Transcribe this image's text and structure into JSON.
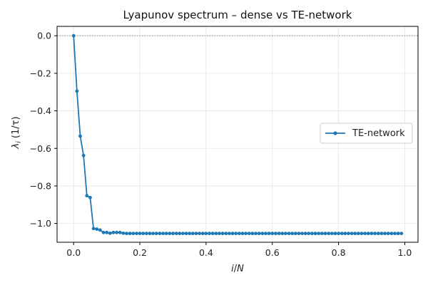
{
  "colors": {
    "series": "#1f77b4",
    "grid": "#e5e5e5",
    "zero_line": "#888888",
    "axis": "#000000"
  },
  "chart_data": {
    "type": "line",
    "title": "Lyapunov spectrum – dense vs TE-network",
    "xlabel": "i/N",
    "ylabel": "λ_i (1/τ)",
    "xlim": [
      -0.05,
      1.04
    ],
    "ylim": [
      -1.1,
      0.05
    ],
    "xticks": [
      0.0,
      0.2,
      0.4,
      0.6,
      0.8,
      1.0
    ],
    "xtick_labels": [
      "0.0",
      "0.2",
      "0.4",
      "0.6",
      "0.8",
      "1.0"
    ],
    "yticks": [
      0.0,
      -0.2,
      -0.4,
      -0.6,
      -0.8,
      -1.0
    ],
    "ytick_labels": [
      "0.0",
      "−0.2",
      "−0.4",
      "−0.6",
      "−0.8",
      "−1.0"
    ],
    "grid": true,
    "zero_reference_line": true,
    "legend": {
      "position": "center-right",
      "entries": [
        "TE-network"
      ]
    },
    "series": [
      {
        "name": "TE-network",
        "marker": "circle",
        "x": [
          0.0,
          0.01,
          0.02,
          0.03,
          0.04,
          0.05,
          0.06,
          0.07,
          0.08,
          0.09,
          0.1,
          0.11,
          0.12,
          0.13,
          0.14,
          0.15,
          0.16,
          0.17,
          0.18,
          0.19,
          0.2,
          0.21,
          0.22,
          0.23,
          0.24,
          0.25,
          0.26,
          0.27,
          0.28,
          0.29,
          0.3,
          0.31,
          0.32,
          0.33,
          0.34,
          0.35,
          0.36,
          0.37,
          0.38,
          0.39,
          0.4,
          0.41,
          0.42,
          0.43,
          0.44,
          0.45,
          0.46,
          0.47,
          0.48,
          0.49,
          0.5,
          0.51,
          0.52,
          0.53,
          0.54,
          0.55,
          0.56,
          0.57,
          0.58,
          0.59,
          0.6,
          0.61,
          0.62,
          0.63,
          0.64,
          0.65,
          0.66,
          0.67,
          0.68,
          0.69,
          0.7,
          0.71,
          0.72,
          0.73,
          0.74,
          0.75,
          0.76,
          0.77,
          0.78,
          0.79,
          0.8,
          0.81,
          0.82,
          0.83,
          0.84,
          0.85,
          0.86,
          0.87,
          0.88,
          0.89,
          0.9,
          0.91,
          0.92,
          0.93,
          0.94,
          0.95,
          0.96,
          0.97,
          0.98,
          0.99
        ],
        "y": [
          0.0,
          -0.295,
          -0.535,
          -0.638,
          -0.852,
          -0.862,
          -1.027,
          -1.03,
          -1.035,
          -1.048,
          -1.048,
          -1.052,
          -1.048,
          -1.048,
          -1.048,
          -1.052,
          -1.053,
          -1.053,
          -1.053,
          -1.053,
          -1.053,
          -1.053,
          -1.053,
          -1.053,
          -1.053,
          -1.053,
          -1.053,
          -1.053,
          -1.053,
          -1.053,
          -1.053,
          -1.053,
          -1.053,
          -1.053,
          -1.053,
          -1.053,
          -1.053,
          -1.053,
          -1.053,
          -1.053,
          -1.053,
          -1.053,
          -1.053,
          -1.053,
          -1.053,
          -1.053,
          -1.053,
          -1.053,
          -1.053,
          -1.053,
          -1.053,
          -1.053,
          -1.053,
          -1.053,
          -1.053,
          -1.053,
          -1.053,
          -1.053,
          -1.053,
          -1.053,
          -1.053,
          -1.053,
          -1.053,
          -1.053,
          -1.053,
          -1.053,
          -1.053,
          -1.053,
          -1.053,
          -1.053,
          -1.053,
          -1.053,
          -1.053,
          -1.053,
          -1.053,
          -1.053,
          -1.053,
          -1.053,
          -1.053,
          -1.053,
          -1.053,
          -1.053,
          -1.053,
          -1.053,
          -1.053,
          -1.053,
          -1.053,
          -1.053,
          -1.053,
          -1.053,
          -1.053,
          -1.053,
          -1.053,
          -1.053,
          -1.053,
          -1.053,
          -1.053,
          -1.053,
          -1.053,
          -1.053
        ]
      }
    ]
  }
}
